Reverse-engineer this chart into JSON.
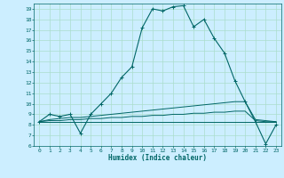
{
  "xlabel": "Humidex (Indice chaleur)",
  "bg_color": "#cceeff",
  "grid_color": "#aaddcc",
  "line_color": "#006666",
  "xlim": [
    -0.5,
    23.5
  ],
  "ylim": [
    6,
    19.5
  ],
  "x_ticks": [
    0,
    1,
    2,
    3,
    4,
    5,
    6,
    7,
    8,
    9,
    10,
    11,
    12,
    13,
    14,
    15,
    16,
    17,
    18,
    19,
    20,
    21,
    22,
    23
  ],
  "y_ticks": [
    6,
    7,
    8,
    9,
    10,
    11,
    12,
    13,
    14,
    15,
    16,
    17,
    18,
    19
  ],
  "series1_x": [
    0,
    1,
    2,
    3,
    4,
    5,
    6,
    7,
    8,
    9,
    10,
    11,
    12,
    13,
    14,
    15,
    16,
    17,
    18,
    19,
    20,
    21,
    22,
    23
  ],
  "series1_y": [
    8.3,
    9.0,
    8.8,
    9.0,
    7.2,
    9.0,
    10.0,
    11.0,
    12.5,
    13.5,
    17.2,
    19.0,
    18.8,
    19.2,
    19.3,
    17.3,
    18.0,
    16.2,
    14.8,
    12.2,
    10.2,
    8.3,
    6.2,
    8.0
  ],
  "series2_y": [
    8.3,
    8.5,
    8.6,
    8.7,
    8.7,
    8.8,
    8.9,
    9.0,
    9.1,
    9.2,
    9.3,
    9.4,
    9.5,
    9.6,
    9.7,
    9.8,
    9.9,
    10.0,
    10.1,
    10.2,
    10.2,
    8.5,
    8.4,
    8.3
  ],
  "series3_y": [
    8.3,
    8.4,
    8.4,
    8.5,
    8.5,
    8.6,
    8.6,
    8.7,
    8.7,
    8.8,
    8.8,
    8.9,
    8.9,
    9.0,
    9.0,
    9.1,
    9.1,
    9.2,
    9.2,
    9.3,
    9.3,
    8.4,
    8.3,
    8.3
  ],
  "series4_y": [
    8.3,
    8.3,
    8.3,
    8.3,
    8.3,
    8.3,
    8.3,
    8.3,
    8.3,
    8.3,
    8.3,
    8.3,
    8.3,
    8.3,
    8.3,
    8.3,
    8.3,
    8.3,
    8.3,
    8.3,
    8.3,
    8.3,
    8.3,
    8.3
  ]
}
